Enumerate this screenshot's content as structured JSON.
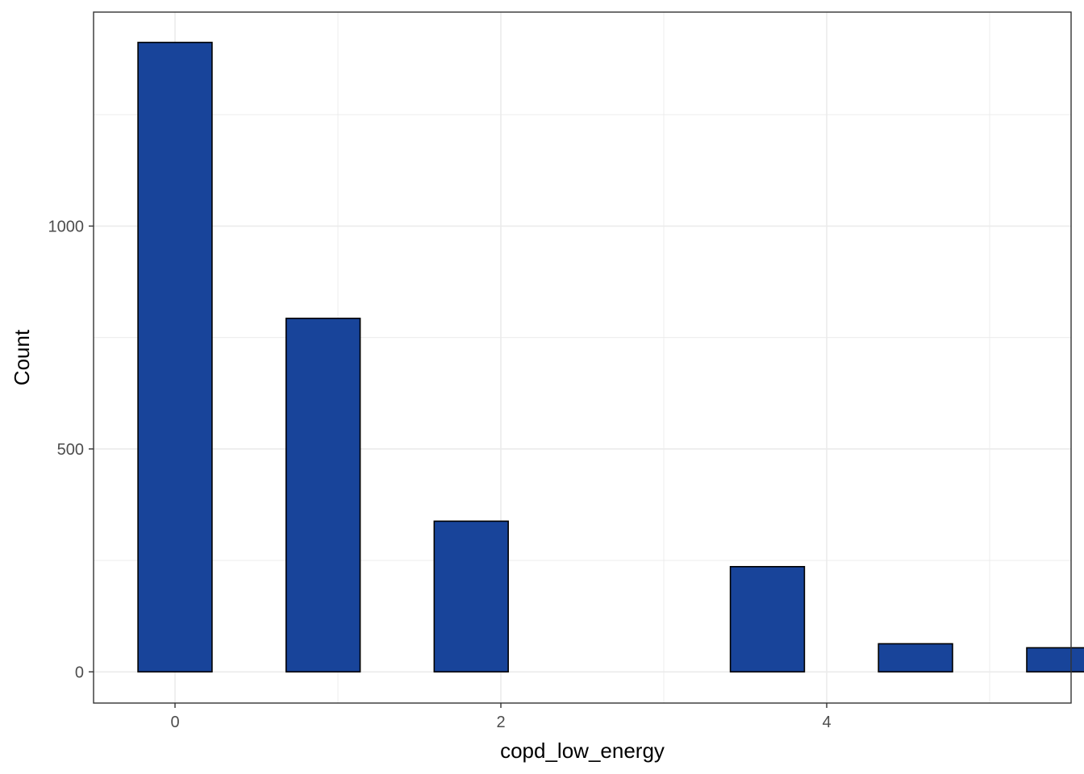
{
  "chart_data": {
    "type": "bar",
    "title": "",
    "xlabel": "copd_low_energy",
    "ylabel": "Count",
    "xlim": [
      -0.5,
      5.5
    ],
    "ylim": [
      -70,
      1480
    ],
    "x_ticks": [
      0,
      2,
      4
    ],
    "x_tick_labels": [
      "0",
      "2",
      "4"
    ],
    "y_ticks": [
      0,
      500,
      1000
    ],
    "y_tick_labels": [
      "0",
      "500",
      "1000"
    ],
    "minor_x_gridlines": [
      1,
      3,
      5
    ],
    "minor_y_gridlines": [
      250,
      750,
      1250
    ],
    "grid": true,
    "bin_width": 0.4545,
    "bins": [
      {
        "x": 0.0,
        "count": 1412
      },
      {
        "x": 0.909,
        "count": 793
      },
      {
        "x": 1.818,
        "count": 338
      },
      {
        "x": 2.727,
        "count": 0
      },
      {
        "x": 3.636,
        "count": 236
      },
      {
        "x": 4.545,
        "count": 63
      },
      {
        "x": 5.455,
        "count": 54
      }
    ],
    "colors": {
      "bar_fill": "#18449A",
      "bar_outline": "#000000",
      "grid": "#EBEBEB",
      "panel_border": "#333333",
      "tick_text": "#4D4D4D"
    }
  }
}
